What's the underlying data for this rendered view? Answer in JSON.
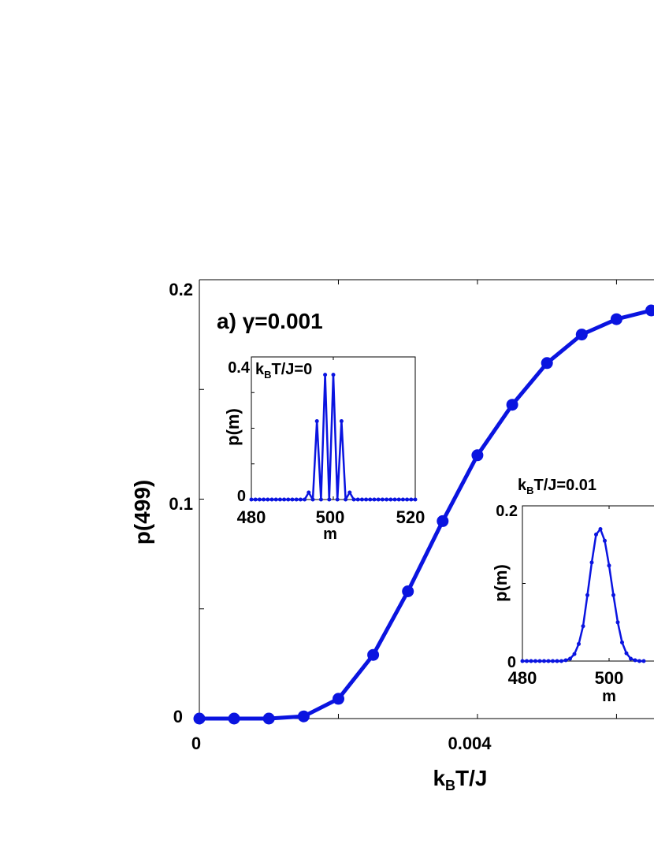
{
  "chart_data": [
    {
      "type": "line",
      "panel_label": "a)",
      "gamma_label": "γ=0.001",
      "xlabel": {
        "main": "k",
        "sub": "B",
        "rest": "T/J"
      },
      "ylabel": "p(499)",
      "xlim": [
        0,
        0.0068
      ],
      "ylim": [
        0,
        0.2
      ],
      "x_ticks": [
        0,
        0.002,
        0.004,
        0.006
      ],
      "x_tick_labels": [
        "0",
        "",
        "0.004",
        ""
      ],
      "y_ticks": [
        0,
        0.05,
        0.1,
        0.15,
        0.2
      ],
      "y_tick_labels": [
        "0",
        "",
        "0.1",
        "",
        "0.2"
      ],
      "color": "#0a14e0",
      "series": [
        {
          "x": [
            0,
            0.0005,
            0.001,
            0.0015,
            0.002,
            0.0025,
            0.003,
            0.0035,
            0.004,
            0.0045,
            0.005,
            0.0055,
            0.006,
            0.0065
          ],
          "y": [
            0.0,
            0.0,
            0.0,
            0.001,
            0.009,
            0.029,
            0.058,
            0.09,
            0.12,
            0.143,
            0.162,
            0.175,
            0.182,
            0.186
          ]
        }
      ]
    },
    {
      "type": "line",
      "title": {
        "main": "k",
        "sub": "B",
        "rest": "T/J=0"
      },
      "xlabel": "m",
      "ylabel": "p(m)",
      "xlim": [
        480,
        520
      ],
      "ylim": [
        0,
        0.4
      ],
      "x_tick_labels": [
        "480",
        "500",
        "520"
      ],
      "y_tick_labels": [
        "0",
        "0.4"
      ],
      "color": "#0a14e0",
      "series": [
        {
          "x": [
            480,
            481,
            482,
            483,
            484,
            485,
            486,
            487,
            488,
            489,
            490,
            491,
            492,
            493,
            494,
            495,
            496,
            497,
            498,
            499,
            500,
            501,
            502,
            503,
            504,
            505,
            506,
            507,
            508,
            509,
            510,
            511,
            512,
            513,
            514,
            515,
            516,
            517,
            518,
            519,
            520
          ],
          "y": [
            0,
            0,
            0,
            0,
            0,
            0,
            0,
            0,
            0,
            0,
            0,
            0,
            0,
            0,
            0.02,
            0,
            0.22,
            0,
            0.35,
            0,
            0.35,
            0,
            0.22,
            0,
            0.02,
            0,
            0,
            0,
            0,
            0,
            0,
            0,
            0,
            0,
            0,
            0,
            0,
            0,
            0,
            0,
            0
          ]
        }
      ]
    },
    {
      "type": "line",
      "title": {
        "main": "k",
        "sub": "B",
        "rest": "T/J=0.01"
      },
      "xlabel": "m",
      "ylabel": "p(m)",
      "xlim": [
        480,
        520
      ],
      "ylim": [
        0,
        0.2
      ],
      "x_tick_labels": [
        "480",
        "500"
      ],
      "y_tick_labels": [
        "0",
        "0.2"
      ],
      "color": "#0a14e0",
      "series": [
        {
          "x": [
            480,
            481,
            482,
            483,
            484,
            485,
            486,
            487,
            488,
            489,
            490,
            491,
            492,
            493,
            494,
            495,
            496,
            497,
            498,
            499,
            500,
            501,
            502,
            503,
            504,
            505,
            506,
            507,
            508
          ],
          "y": [
            0,
            0,
            0,
            0,
            0,
            0,
            0,
            0,
            0,
            0,
            0.001,
            0.003,
            0.009,
            0.022,
            0.045,
            0.085,
            0.127,
            0.163,
            0.17,
            0.155,
            0.123,
            0.085,
            0.05,
            0.024,
            0.01,
            0.003,
            0.001,
            0,
            0
          ]
        }
      ]
    }
  ]
}
